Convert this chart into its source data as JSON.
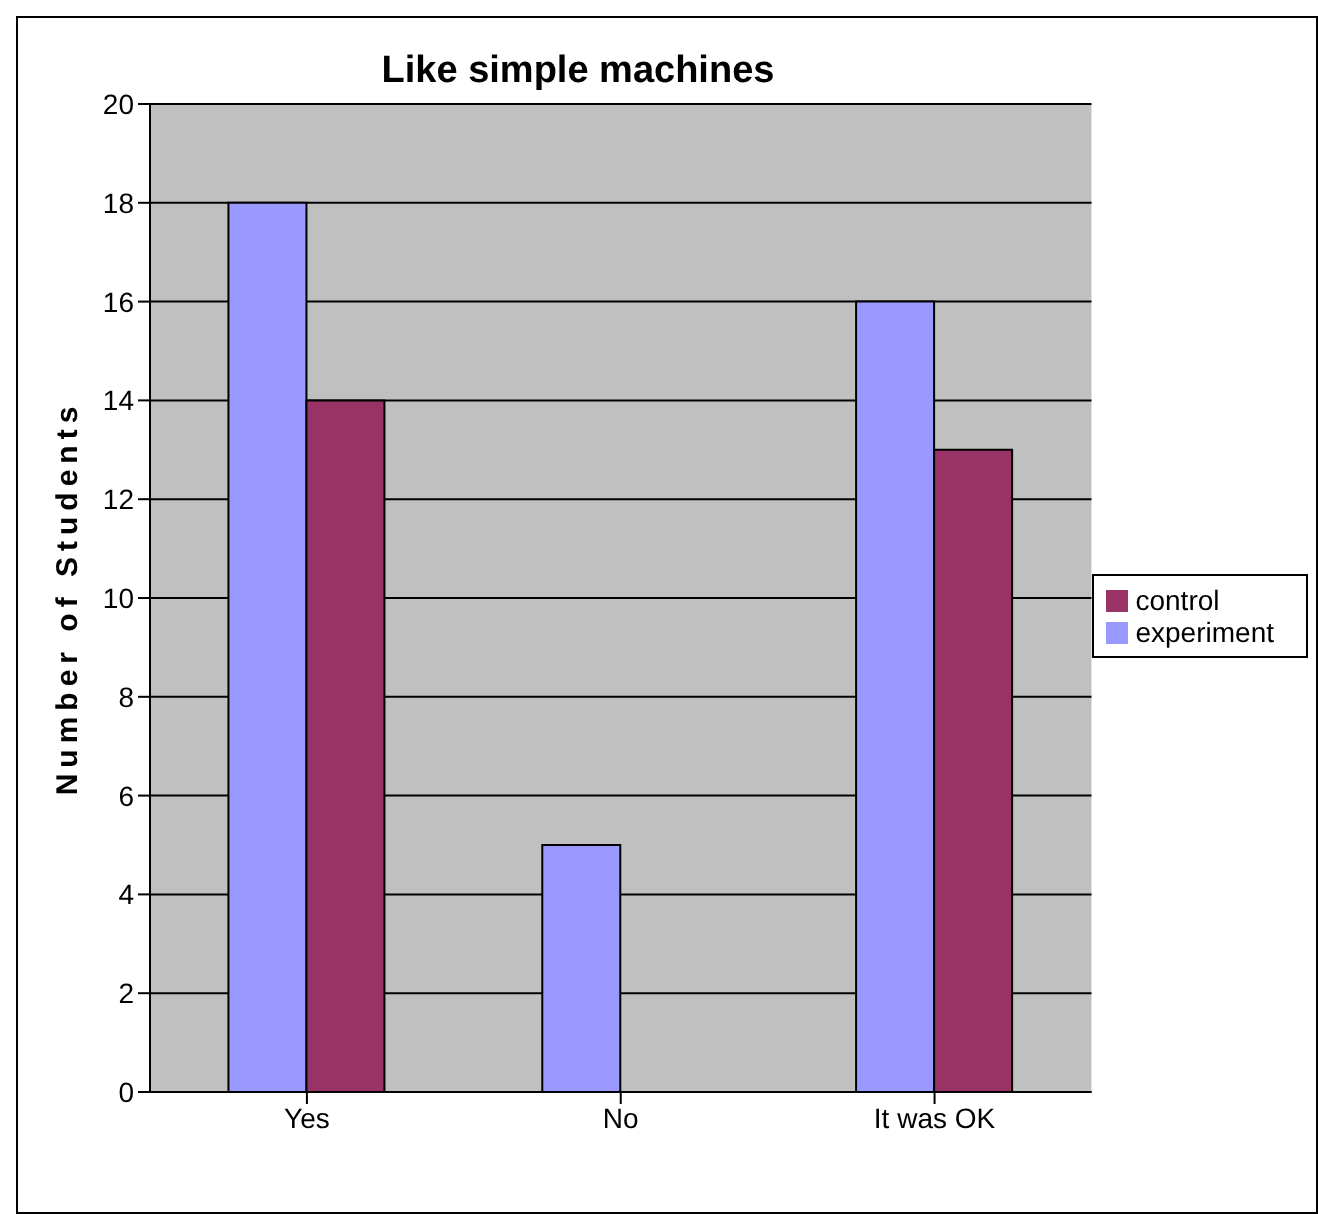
{
  "chart_data": {
    "type": "bar",
    "title": "Like simple machines",
    "ylabel": "Number of Students",
    "categories": [
      "Yes",
      "No",
      "It was OK"
    ],
    "series": [
      {
        "name": "experiment",
        "color": "#9999ff",
        "values": [
          18,
          5,
          16
        ]
      },
      {
        "name": "control",
        "color": "#993366",
        "values": [
          14,
          0,
          13
        ]
      }
    ],
    "ylim": [
      0,
      20
    ],
    "yticks": [
      0,
      2,
      4,
      6,
      8,
      10,
      12,
      14,
      16,
      18,
      20
    ],
    "grid": "y",
    "legend": "right"
  }
}
